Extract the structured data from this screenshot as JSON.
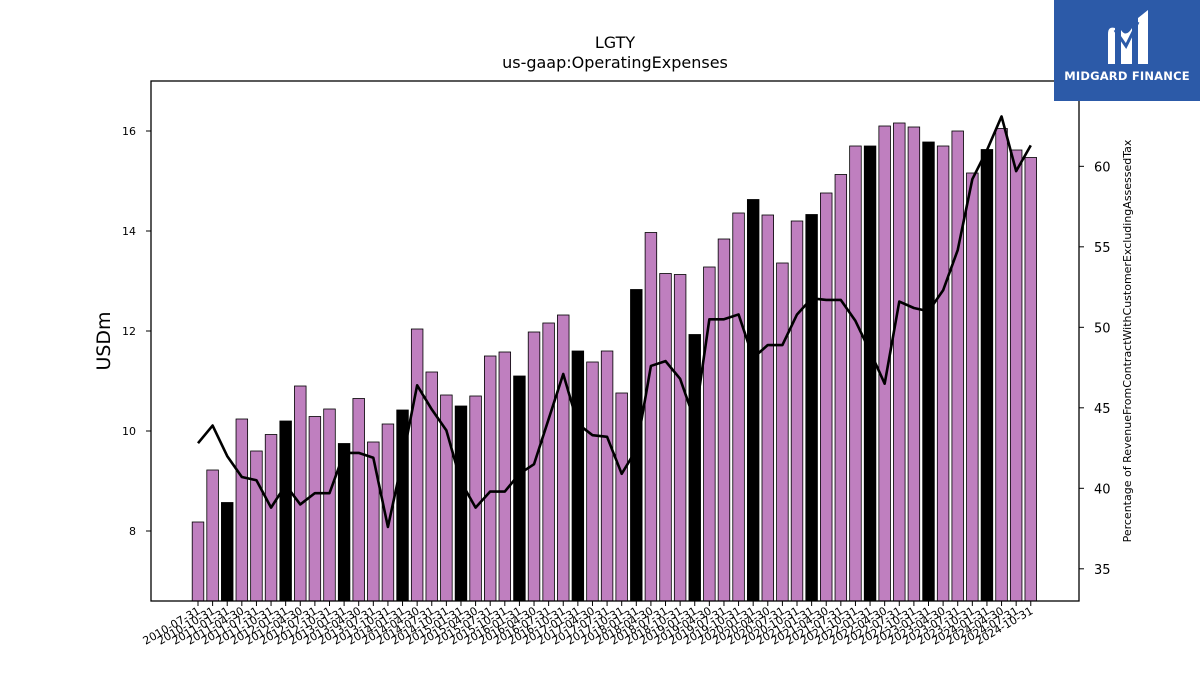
{
  "brand": {
    "name": "MIDGARD FINANCE",
    "color": "#2c5aa8"
  },
  "chart_data": {
    "type": "bar",
    "title": "LGTY",
    "subtitle": "us-gaap:OperatingExpenses",
    "ylabel": "USDm",
    "y2label": "Percentage of RevenueFromContractWithCustomerExcludingAssessedTax",
    "ylim": [
      6.6,
      17.0
    ],
    "y2lim": [
      33.0,
      65.3
    ],
    "yticks": [
      8,
      10,
      12,
      14,
      16
    ],
    "y2ticks": [
      35,
      40,
      45,
      50,
      55,
      60
    ],
    "colors": {
      "quarter_bar": "#bf7fbf",
      "annual_bar": "#000000",
      "line": "#000000"
    },
    "categories": [
      "2010-07-31",
      "2010-10-31",
      "2011-01-31",
      "2011-04-30",
      "2011-07-31",
      "2011-10-31",
      "2012-01-31",
      "2012-04-30",
      "2012-07-31",
      "2012-10-31",
      "2013-01-31",
      "2013-04-30",
      "2013-07-31",
      "2013-10-31",
      "2014-01-31",
      "2014-04-30",
      "2014-07-31",
      "2014-10-31",
      "2015-01-31",
      "2015-04-30",
      "2015-07-31",
      "2015-10-31",
      "2016-01-31",
      "2016-04-30",
      "2016-07-31",
      "2016-10-31",
      "2017-01-31",
      "2017-04-30",
      "2017-07-31",
      "2017-10-31",
      "2018-01-31",
      "2018-04-30",
      "2018-07-31",
      "2018-10-31",
      "2019-01-31",
      "2019-04-30",
      "2019-07-31",
      "2019-10-31",
      "2020-01-31",
      "2020-04-30",
      "2020-07-31",
      "2020-10-31",
      "2021-01-31",
      "2021-04-30",
      "2021-07-31",
      "2021-10-31",
      "2022-01-31",
      "2022-04-30",
      "2022-07-31",
      "2022-10-31",
      "2023-01-31",
      "2023-04-30",
      "2023-07-31",
      "2023-10-31",
      "2024-01-31",
      "2024-04-30",
      "2024-07-31",
      "2024-10-31"
    ],
    "series": [
      {
        "kind": "bar",
        "values": [
          8.18,
          9.22,
          8.57,
          10.24,
          9.6,
          9.93,
          10.2,
          10.9,
          10.29,
          10.44,
          9.75,
          10.65,
          9.78,
          10.14,
          10.42,
          12.04,
          11.18,
          10.72,
          10.5,
          10.7,
          11.5,
          11.58,
          11.1,
          11.98,
          12.16,
          12.32,
          11.6,
          11.38,
          11.6,
          10.76,
          12.83,
          13.97,
          13.15,
          13.13,
          11.93,
          13.28,
          13.84,
          14.36,
          14.63,
          14.32,
          13.36,
          14.2,
          14.33,
          14.76,
          15.13,
          15.7,
          15.7,
          16.1,
          16.16,
          16.08,
          15.78,
          15.7,
          16.0,
          15.16,
          15.63,
          16.05,
          15.62,
          15.47
        ]
      },
      {
        "kind": "line",
        "axis": "right",
        "values": [
          42.8,
          43.9,
          42.0,
          40.7,
          40.5,
          38.8,
          40.2,
          39.0,
          39.7,
          39.7,
          42.2,
          42.2,
          41.9,
          37.6,
          41.8,
          46.4,
          44.9,
          43.6,
          40.4,
          38.8,
          39.8,
          39.8,
          40.9,
          41.5,
          44.3,
          47.1,
          44.0,
          43.3,
          43.2,
          40.9,
          42.4,
          47.6,
          47.9,
          46.8,
          44.2,
          50.5,
          50.5,
          50.8,
          48.1,
          48.9,
          48.9,
          50.8,
          51.8,
          51.7,
          51.7,
          50.4,
          48.5,
          46.5,
          51.6,
          51.2,
          51.0,
          52.3,
          54.8,
          59.2,
          61.0,
          63.1,
          59.7,
          61.3
        ]
      }
    ],
    "annual_flags": [
      false,
      false,
      true,
      false,
      false,
      false,
      true,
      false,
      false,
      false,
      true,
      false,
      false,
      false,
      true,
      false,
      false,
      false,
      true,
      false,
      false,
      false,
      true,
      false,
      false,
      false,
      true,
      false,
      false,
      false,
      true,
      false,
      false,
      false,
      true,
      false,
      false,
      false,
      true,
      false,
      false,
      false,
      true,
      false,
      false,
      false,
      true,
      false,
      false,
      false,
      true,
      false,
      false,
      false,
      true,
      false,
      false,
      false
    ]
  }
}
